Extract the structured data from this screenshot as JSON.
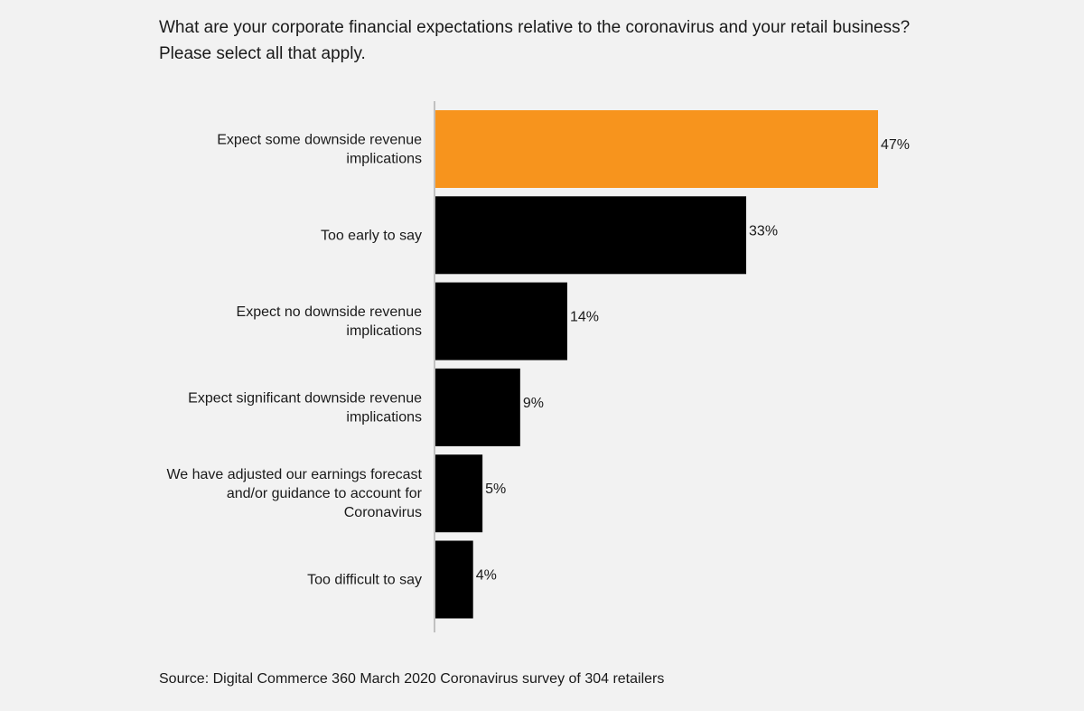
{
  "title_lines": [
    "What are your corporate financial expectations relative to the coronavirus and your retail business?",
    "Please select all that apply."
  ],
  "source": "Source: Digital Commerce 360  March 2020 Coronavirus survey  of 304 retailers",
  "colors": {
    "highlight": "#f7941d",
    "bar": "#000000",
    "axis": "#b0b0b0",
    "text": "#1a1a1a"
  },
  "chart_data": {
    "type": "bar",
    "orientation": "horizontal",
    "categories": [
      "Expect some downside revenue implications",
      "Too early to say",
      "Expect no downside revenue implications",
      "Expect significant downside revenue implications",
      "We have adjusted our earnings forecast and/or guidance to account for Coronavirus",
      "Too difficult to say"
    ],
    "category_label_lines": [
      [
        "Expect some downside revenue",
        "implications"
      ],
      [
        "Too early to say"
      ],
      [
        "Expect no downside revenue",
        "implications"
      ],
      [
        "Expect significant downside revenue",
        "implications"
      ],
      [
        "We have adjusted our earnings forecast",
        "and/or guidance to account for",
        "Coronavirus"
      ],
      [
        "Too difficult to say"
      ]
    ],
    "values": [
      47,
      33,
      14,
      9,
      5,
      4
    ],
    "data_labels": [
      "47%",
      "33%",
      "14%",
      "9%",
      "5%",
      "4%"
    ],
    "highlight_index": 0,
    "unit": "%",
    "xlim": [
      0,
      47
    ],
    "grid": false,
    "legend": "none"
  }
}
